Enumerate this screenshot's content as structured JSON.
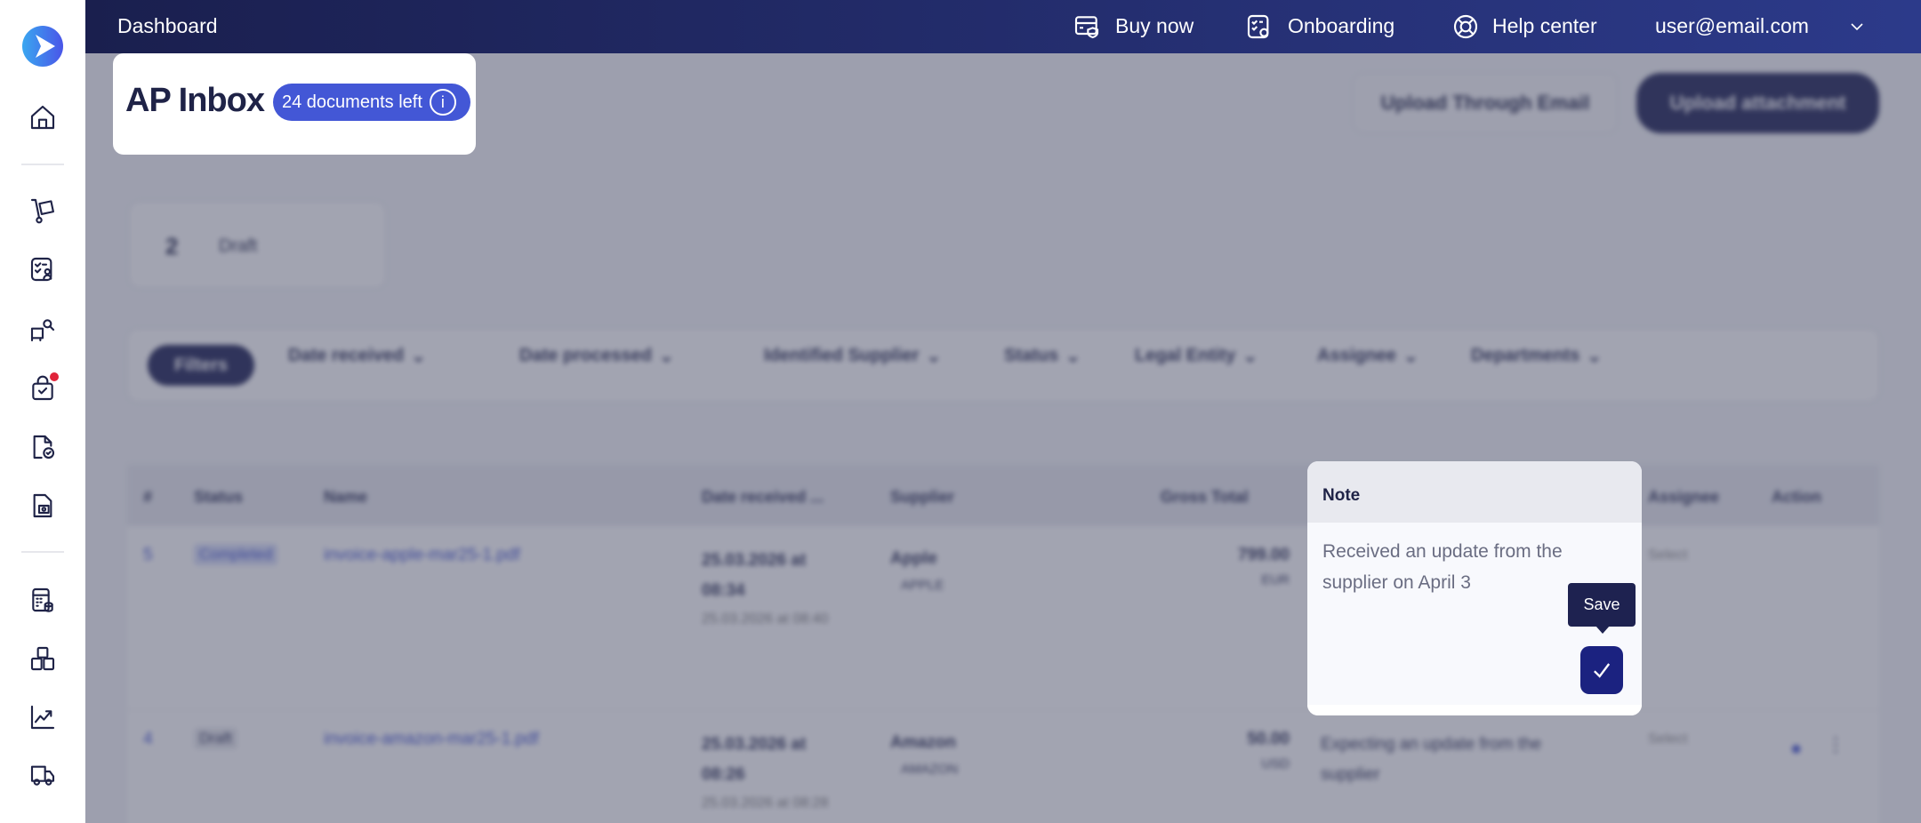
{
  "topbar": {
    "title": "Dashboard",
    "buy_now": "Buy now",
    "onboarding": "Onboarding",
    "help_center": "Help center",
    "user_email": "user@email.com"
  },
  "header": {
    "title": "AP Inbox",
    "documents_left": "24 documents left",
    "upload_email": "Upload Through Email",
    "upload_attachment": "Upload attachment"
  },
  "summary": {
    "count": "2",
    "label": "Draft"
  },
  "filters": {
    "filters_button": "Filters",
    "items": [
      "Date received",
      "Date processed",
      "Identified Supplier",
      "Status",
      "Legal Entity",
      "Assignee",
      "Departments"
    ]
  },
  "table": {
    "headers": {
      "num": "#",
      "status": "Status",
      "name": "Name",
      "date": "Date received ...",
      "supplier": "Supplier",
      "gross": "Gross Total",
      "assignee": "Assignee",
      "action": "Action"
    },
    "rows": [
      {
        "num": "5",
        "status": "Completed",
        "name": "invoice-apple-mar25-1.pdf",
        "date": "25.03.2026 at 08:34",
        "processed": "25.03.2026 at 08:40",
        "supplier": "Apple",
        "supplier_code": "APPLE",
        "gross": "799.00",
        "currency": "EUR",
        "note": "",
        "assignee": "Select"
      },
      {
        "num": "4",
        "status": "Draft",
        "name": "invoice-amazon-mar25-1.pdf",
        "date": "25.03.2026 at 08:26",
        "processed": "25.03.2026 at 08:28",
        "supplier": "Amazon",
        "supplier_code": "AMAZON",
        "gross": "50.00",
        "currency": "USD",
        "note": "Expecting an update from the supplier",
        "assignee": "Select"
      }
    ]
  },
  "note_popup": {
    "title": "Note",
    "text": "Received an update from the supplier on April 3",
    "save_tooltip": "Save"
  },
  "colors": {
    "brand_dark": "#1b1f52",
    "accent": "#3d4fd0",
    "notification": "#e0243a"
  }
}
